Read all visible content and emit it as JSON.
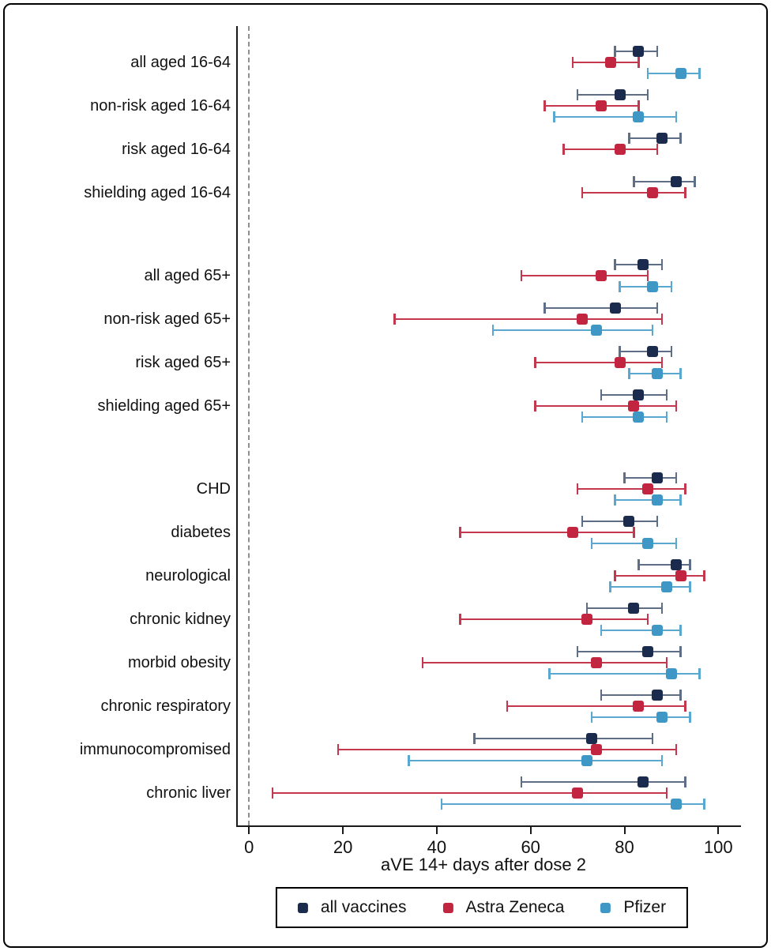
{
  "chart_data": {
    "type": "scatter",
    "variant": "forest-dot-whisker",
    "title": "",
    "xlabel": "aVE 14+ days after dose 2",
    "xlim": [
      -3,
      105
    ],
    "x_ticks": [
      0,
      20,
      40,
      60,
      80,
      100
    ],
    "reference_line_x": 0,
    "grid": false,
    "legend_position": "bottom",
    "series": [
      {
        "key": "all_vaccines",
        "name": "all vaccines",
        "marker_color": "#1b2b4e",
        "line_color": "#5f6e87"
      },
      {
        "key": "astra_zeneca",
        "name": "Astra Zeneca",
        "marker_color": "#c2253f",
        "line_color": "#c4384d"
      },
      {
        "key": "pfizer",
        "name": "Pfizer",
        "marker_color": "#3f97c6",
        "line_color": "#5aa7cf"
      }
    ],
    "sections": [
      {
        "rows": [
          {
            "label": "all aged 16-64",
            "all_vaccines": {
              "est": 83,
              "lo": 78,
              "hi": 87
            },
            "astra_zeneca": {
              "est": 77,
              "lo": 69,
              "hi": 83
            },
            "pfizer": {
              "est": 92,
              "lo": 85,
              "hi": 96
            }
          },
          {
            "label": "non-risk aged 16-64",
            "all_vaccines": {
              "est": 79,
              "lo": 70,
              "hi": 85
            },
            "astra_zeneca": {
              "est": 75,
              "lo": 63,
              "hi": 83
            },
            "pfizer": {
              "est": 83,
              "lo": 65,
              "hi": 91
            }
          },
          {
            "label": "risk aged 16-64",
            "all_vaccines": {
              "est": 88,
              "lo": 81,
              "hi": 92
            },
            "astra_zeneca": {
              "est": 79,
              "lo": 67,
              "hi": 87
            },
            "pfizer": null
          },
          {
            "label": "shielding aged 16-64",
            "all_vaccines": {
              "est": 91,
              "lo": 82,
              "hi": 95
            },
            "astra_zeneca": {
              "est": 86,
              "lo": 71,
              "hi": 93
            },
            "pfizer": null
          }
        ]
      },
      {
        "rows": [
          {
            "label": "all aged 65+",
            "all_vaccines": {
              "est": 84,
              "lo": 78,
              "hi": 88
            },
            "astra_zeneca": {
              "est": 75,
              "lo": 58,
              "hi": 85
            },
            "pfizer": {
              "est": 86,
              "lo": 79,
              "hi": 90
            }
          },
          {
            "label": "non-risk aged 65+",
            "all_vaccines": {
              "est": 78,
              "lo": 63,
              "hi": 87
            },
            "astra_zeneca": {
              "est": 71,
              "lo": 31,
              "hi": 88
            },
            "pfizer": {
              "est": 74,
              "lo": 52,
              "hi": 86
            }
          },
          {
            "label": "risk aged 65+",
            "all_vaccines": {
              "est": 86,
              "lo": 79,
              "hi": 90
            },
            "astra_zeneca": {
              "est": 79,
              "lo": 61,
              "hi": 88
            },
            "pfizer": {
              "est": 87,
              "lo": 81,
              "hi": 92
            }
          },
          {
            "label": "shielding aged 65+",
            "all_vaccines": {
              "est": 83,
              "lo": 75,
              "hi": 89
            },
            "astra_zeneca": {
              "est": 82,
              "lo": 61,
              "hi": 91
            },
            "pfizer": {
              "est": 83,
              "lo": 71,
              "hi": 89
            }
          }
        ]
      },
      {
        "rows": [
          {
            "label": "CHD",
            "all_vaccines": {
              "est": 87,
              "lo": 80,
              "hi": 91
            },
            "astra_zeneca": {
              "est": 85,
              "lo": 70,
              "hi": 93
            },
            "pfizer": {
              "est": 87,
              "lo": 78,
              "hi": 92
            }
          },
          {
            "label": "diabetes",
            "all_vaccines": {
              "est": 81,
              "lo": 71,
              "hi": 87
            },
            "astra_zeneca": {
              "est": 69,
              "lo": 45,
              "hi": 82
            },
            "pfizer": {
              "est": 85,
              "lo": 73,
              "hi": 91
            }
          },
          {
            "label": "neurological",
            "all_vaccines": {
              "est": 91,
              "lo": 83,
              "hi": 94
            },
            "astra_zeneca": {
              "est": 92,
              "lo": 78,
              "hi": 97
            },
            "pfizer": {
              "est": 89,
              "lo": 77,
              "hi": 94
            }
          },
          {
            "label": "chronic kidney",
            "all_vaccines": {
              "est": 82,
              "lo": 72,
              "hi": 88
            },
            "astra_zeneca": {
              "est": 72,
              "lo": 45,
              "hi": 85
            },
            "pfizer": {
              "est": 87,
              "lo": 75,
              "hi": 92
            }
          },
          {
            "label": "morbid obesity",
            "all_vaccines": {
              "est": 85,
              "lo": 70,
              "hi": 92
            },
            "astra_zeneca": {
              "est": 74,
              "lo": 37,
              "hi": 89
            },
            "pfizer": {
              "est": 90,
              "lo": 64,
              "hi": 96
            }
          },
          {
            "label": "chronic respiratory",
            "all_vaccines": {
              "est": 87,
              "lo": 75,
              "hi": 92
            },
            "astra_zeneca": {
              "est": 83,
              "lo": 55,
              "hi": 93
            },
            "pfizer": {
              "est": 88,
              "lo": 73,
              "hi": 94
            }
          },
          {
            "label": "immunocompromised",
            "all_vaccines": {
              "est": 73,
              "lo": 48,
              "hi": 86
            },
            "astra_zeneca": {
              "est": 74,
              "lo": 19,
              "hi": 91
            },
            "pfizer": {
              "est": 72,
              "lo": 34,
              "hi": 88
            }
          },
          {
            "label": "chronic liver",
            "all_vaccines": {
              "est": 84,
              "lo": 58,
              "hi": 93
            },
            "astra_zeneca": {
              "est": 70,
              "lo": 5,
              "hi": 89
            },
            "pfizer": {
              "est": 91,
              "lo": 41,
              "hi": 97
            }
          }
        ]
      }
    ]
  }
}
